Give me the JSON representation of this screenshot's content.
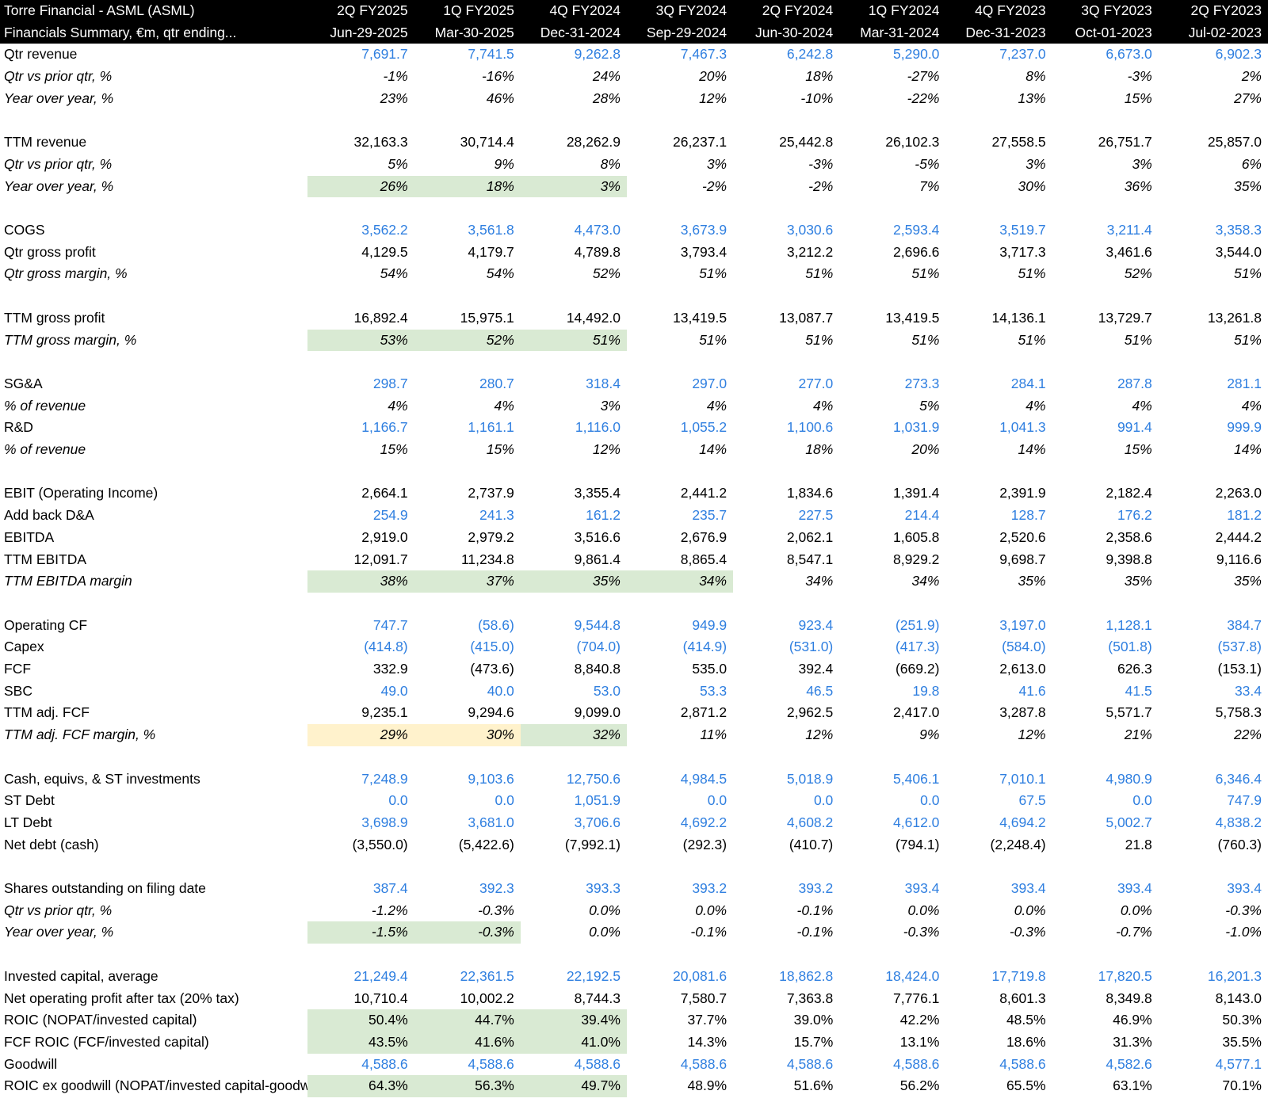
{
  "header": {
    "row1_label": "Torre Financial - ASML (ASML)",
    "row2_label": "Financials Summary, €m, qtr ending...",
    "quarters": [
      "2Q FY2025",
      "1Q FY2025",
      "4Q FY2024",
      "3Q FY2024",
      "2Q FY2024",
      "1Q FY2024",
      "4Q FY2023",
      "3Q FY2023",
      "2Q FY2023"
    ],
    "dates": [
      "Jun-29-2025",
      "Mar-30-2025",
      "Dec-31-2024",
      "Sep-29-2024",
      "Jun-30-2024",
      "Mar-31-2024",
      "Dec-31-2023",
      "Oct-01-2023",
      "Jul-02-2023"
    ]
  },
  "colors": {
    "input_blue": "#2f7fe0",
    "highlight_green": "#d9ead3",
    "highlight_yellow": "#fff2cc",
    "header_bg": "#000000"
  },
  "rows": [
    {
      "label": "Qtr revenue",
      "italic": false,
      "blue": true,
      "values": [
        "7,691.7",
        "7,741.5",
        "9,262.8",
        "7,467.3",
        "6,242.8",
        "5,290.0",
        "7,237.0",
        "6,673.0",
        "6,902.3"
      ],
      "hl": []
    },
    {
      "label": "Qtr vs prior qtr, %",
      "italic": true,
      "blue": false,
      "values": [
        "-1%",
        "-16%",
        "24%",
        "20%",
        "18%",
        "-27%",
        "8%",
        "-3%",
        "2%"
      ],
      "hl": []
    },
    {
      "label": "Year over year, %",
      "italic": true,
      "blue": false,
      "values": [
        "23%",
        "46%",
        "28%",
        "12%",
        "-10%",
        "-22%",
        "13%",
        "15%",
        "27%"
      ],
      "hl": []
    },
    {
      "spacer": true
    },
    {
      "label": "TTM revenue",
      "italic": false,
      "blue": false,
      "values": [
        "32,163.3",
        "30,714.4",
        "28,262.9",
        "26,237.1",
        "25,442.8",
        "26,102.3",
        "27,558.5",
        "26,751.7",
        "25,857.0"
      ],
      "hl": []
    },
    {
      "label": "Qtr vs prior qtr, %",
      "italic": true,
      "blue": false,
      "values": [
        "5%",
        "9%",
        "8%",
        "3%",
        "-3%",
        "-5%",
        "3%",
        "3%",
        "6%"
      ],
      "hl": []
    },
    {
      "label": "Year over year, %",
      "italic": true,
      "blue": false,
      "values": [
        "26%",
        "18%",
        "3%",
        "-2%",
        "-2%",
        "7%",
        "30%",
        "36%",
        "35%"
      ],
      "hl": [
        "g",
        "g",
        "g"
      ]
    },
    {
      "spacer": true
    },
    {
      "label": "COGS",
      "italic": false,
      "blue": true,
      "values": [
        "3,562.2",
        "3,561.8",
        "4,473.0",
        "3,673.9",
        "3,030.6",
        "2,593.4",
        "3,519.7",
        "3,211.4",
        "3,358.3"
      ],
      "hl": []
    },
    {
      "label": "Qtr gross profit",
      "italic": false,
      "blue": false,
      "values": [
        "4,129.5",
        "4,179.7",
        "4,789.8",
        "3,793.4",
        "3,212.2",
        "2,696.6",
        "3,717.3",
        "3,461.6",
        "3,544.0"
      ],
      "hl": []
    },
    {
      "label": "Qtr gross margin, %",
      "italic": true,
      "blue": false,
      "values": [
        "54%",
        "54%",
        "52%",
        "51%",
        "51%",
        "51%",
        "51%",
        "52%",
        "51%"
      ],
      "hl": []
    },
    {
      "spacer": true
    },
    {
      "label": "TTM gross profit",
      "italic": false,
      "blue": false,
      "values": [
        "16,892.4",
        "15,975.1",
        "14,492.0",
        "13,419.5",
        "13,087.7",
        "13,419.5",
        "14,136.1",
        "13,729.7",
        "13,261.8"
      ],
      "hl": []
    },
    {
      "label": "TTM gross margin, %",
      "italic": true,
      "blue": false,
      "values": [
        "53%",
        "52%",
        "51%",
        "51%",
        "51%",
        "51%",
        "51%",
        "51%",
        "51%"
      ],
      "hl": [
        "g",
        "g",
        "g"
      ]
    },
    {
      "spacer": true
    },
    {
      "label": "SG&A",
      "italic": false,
      "blue": true,
      "values": [
        "298.7",
        "280.7",
        "318.4",
        "297.0",
        "277.0",
        "273.3",
        "284.1",
        "287.8",
        "281.1"
      ],
      "hl": []
    },
    {
      "label": "% of revenue",
      "italic": true,
      "blue": false,
      "values": [
        "4%",
        "4%",
        "3%",
        "4%",
        "4%",
        "5%",
        "4%",
        "4%",
        "4%"
      ],
      "hl": []
    },
    {
      "label": "R&D",
      "italic": false,
      "blue": true,
      "values": [
        "1,166.7",
        "1,161.1",
        "1,116.0",
        "1,055.2",
        "1,100.6",
        "1,031.9",
        "1,041.3",
        "991.4",
        "999.9"
      ],
      "hl": []
    },
    {
      "label": "% of revenue",
      "italic": true,
      "blue": false,
      "values": [
        "15%",
        "15%",
        "12%",
        "14%",
        "18%",
        "20%",
        "14%",
        "15%",
        "14%"
      ],
      "hl": []
    },
    {
      "spacer": true
    },
    {
      "label": "EBIT (Operating Income)",
      "italic": false,
      "blue": false,
      "values": [
        "2,664.1",
        "2,737.9",
        "3,355.4",
        "2,441.2",
        "1,834.6",
        "1,391.4",
        "2,391.9",
        "2,182.4",
        "2,263.0"
      ],
      "hl": []
    },
    {
      "label": "Add back D&A",
      "italic": false,
      "blue": true,
      "values": [
        "254.9",
        "241.3",
        "161.2",
        "235.7",
        "227.5",
        "214.4",
        "128.7",
        "176.2",
        "181.2"
      ],
      "hl": []
    },
    {
      "label": "EBITDA",
      "italic": false,
      "blue": false,
      "values": [
        "2,919.0",
        "2,979.2",
        "3,516.6",
        "2,676.9",
        "2,062.1",
        "1,605.8",
        "2,520.6",
        "2,358.6",
        "2,444.2"
      ],
      "hl": []
    },
    {
      "label": "TTM EBITDA",
      "italic": false,
      "blue": false,
      "values": [
        "12,091.7",
        "11,234.8",
        "9,861.4",
        "8,865.4",
        "8,547.1",
        "8,929.2",
        "9,698.7",
        "9,398.8",
        "9,116.6"
      ],
      "hl": []
    },
    {
      "label": "TTM EBITDA margin",
      "italic": true,
      "blue": false,
      "values": [
        "38%",
        "37%",
        "35%",
        "34%",
        "34%",
        "34%",
        "35%",
        "35%",
        "35%"
      ],
      "hl": [
        "g",
        "g",
        "g",
        "g"
      ]
    },
    {
      "spacer": true
    },
    {
      "label": "Operating CF",
      "italic": false,
      "blue": true,
      "values": [
        "747.7",
        "(58.6)",
        "9,544.8",
        "949.9",
        "923.4",
        "(251.9)",
        "3,197.0",
        "1,128.1",
        "384.7"
      ],
      "hl": []
    },
    {
      "label": "Capex",
      "italic": false,
      "blue": true,
      "values": [
        "(414.8)",
        "(415.0)",
        "(704.0)",
        "(414.9)",
        "(531.0)",
        "(417.3)",
        "(584.0)",
        "(501.8)",
        "(537.8)"
      ],
      "hl": []
    },
    {
      "label": "FCF",
      "italic": false,
      "blue": false,
      "values": [
        "332.9",
        "(473.6)",
        "8,840.8",
        "535.0",
        "392.4",
        "(669.2)",
        "2,613.0",
        "626.3",
        "(153.1)"
      ],
      "hl": []
    },
    {
      "label": "SBC",
      "italic": false,
      "blue": true,
      "values": [
        "49.0",
        "40.0",
        "53.0",
        "53.3",
        "46.5",
        "19.8",
        "41.6",
        "41.5",
        "33.4"
      ],
      "hl": []
    },
    {
      "label": "TTM adj. FCF",
      "italic": false,
      "blue": false,
      "values": [
        "9,235.1",
        "9,294.6",
        "9,099.0",
        "2,871.2",
        "2,962.5",
        "2,417.0",
        "3,287.8",
        "5,571.7",
        "5,758.3"
      ],
      "hl": []
    },
    {
      "label": "TTM adj. FCF margin, %",
      "italic": true,
      "blue": false,
      "values": [
        "29%",
        "30%",
        "32%",
        "11%",
        "12%",
        "9%",
        "12%",
        "21%",
        "22%"
      ],
      "hl": [
        "y",
        "y",
        "g"
      ]
    },
    {
      "spacer": true
    },
    {
      "label": "Cash, equivs, & ST investments",
      "italic": false,
      "blue": true,
      "values": [
        "7,248.9",
        "9,103.6",
        "12,750.6",
        "4,984.5",
        "5,018.9",
        "5,406.1",
        "7,010.1",
        "4,980.9",
        "6,346.4"
      ],
      "hl": []
    },
    {
      "label": "ST Debt",
      "italic": false,
      "blue": true,
      "values": [
        "0.0",
        "0.0",
        "1,051.9",
        "0.0",
        "0.0",
        "0.0",
        "67.5",
        "0.0",
        "747.9"
      ],
      "hl": []
    },
    {
      "label": "LT Debt",
      "italic": false,
      "blue": true,
      "values": [
        "3,698.9",
        "3,681.0",
        "3,706.6",
        "4,692.2",
        "4,608.2",
        "4,612.0",
        "4,694.2",
        "5,002.7",
        "4,838.2"
      ],
      "hl": []
    },
    {
      "label": "Net debt (cash)",
      "italic": false,
      "blue": false,
      "values": [
        "(3,550.0)",
        "(5,422.6)",
        "(7,992.1)",
        "(292.3)",
        "(410.7)",
        "(794.1)",
        "(2,248.4)",
        "21.8",
        "(760.3)"
      ],
      "hl": []
    },
    {
      "spacer": true
    },
    {
      "label": "Shares outstanding on filing date",
      "italic": false,
      "blue": true,
      "values": [
        "387.4",
        "392.3",
        "393.3",
        "393.2",
        "393.2",
        "393.4",
        "393.4",
        "393.4",
        "393.4"
      ],
      "hl": []
    },
    {
      "label": "Qtr vs prior qtr, %",
      "italic": true,
      "blue": false,
      "values": [
        "-1.2%",
        "-0.3%",
        "0.0%",
        "0.0%",
        "-0.1%",
        "0.0%",
        "0.0%",
        "0.0%",
        "-0.3%"
      ],
      "hl": []
    },
    {
      "label": "Year over year, %",
      "italic": true,
      "blue": false,
      "values": [
        "-1.5%",
        "-0.3%",
        "0.0%",
        "-0.1%",
        "-0.1%",
        "-0.3%",
        "-0.3%",
        "-0.7%",
        "-1.0%"
      ],
      "hl": [
        "g",
        "g"
      ]
    },
    {
      "spacer": true
    },
    {
      "label": "Invested capital, average",
      "italic": false,
      "blue": true,
      "values": [
        "21,249.4",
        "22,361.5",
        "22,192.5",
        "20,081.6",
        "18,862.8",
        "18,424.0",
        "17,719.8",
        "17,820.5",
        "16,201.3"
      ],
      "hl": []
    },
    {
      "label": "Net operating profit after tax (20% tax)",
      "italic": false,
      "blue": false,
      "values": [
        "10,710.4",
        "10,002.2",
        "8,744.3",
        "7,580.7",
        "7,363.8",
        "7,776.1",
        "8,601.3",
        "8,349.8",
        "8,143.0"
      ],
      "hl": []
    },
    {
      "label": "ROIC (NOPAT/invested capital)",
      "italic": false,
      "blue": false,
      "values": [
        "50.4%",
        "44.7%",
        "39.4%",
        "37.7%",
        "39.0%",
        "42.2%",
        "48.5%",
        "46.9%",
        "50.3%"
      ],
      "hl": [
        "g",
        "g",
        "g"
      ],
      "lblhl": "g"
    },
    {
      "label": "FCF ROIC (FCF/invested capital)",
      "italic": false,
      "blue": false,
      "values": [
        "43.5%",
        "41.6%",
        "41.0%",
        "14.3%",
        "15.7%",
        "13.1%",
        "18.6%",
        "31.3%",
        "35.5%"
      ],
      "hl": [
        "g",
        "g",
        "g"
      ],
      "lblhl": "g"
    },
    {
      "label": "Goodwill",
      "italic": false,
      "blue": true,
      "values": [
        "4,588.6",
        "4,588.6",
        "4,588.6",
        "4,588.6",
        "4,588.6",
        "4,588.6",
        "4,588.6",
        "4,582.6",
        "4,577.1"
      ],
      "hl": []
    },
    {
      "label": "ROIC ex goodwill (NOPAT/invested capital-goodwill)",
      "italic": false,
      "blue": false,
      "values": [
        "64.3%",
        "56.3%",
        "49.7%",
        "48.9%",
        "51.6%",
        "56.2%",
        "65.5%",
        "63.1%",
        "70.1%"
      ],
      "hl": [
        "g",
        "g",
        "g"
      ],
      "lblhl": "g"
    }
  ]
}
